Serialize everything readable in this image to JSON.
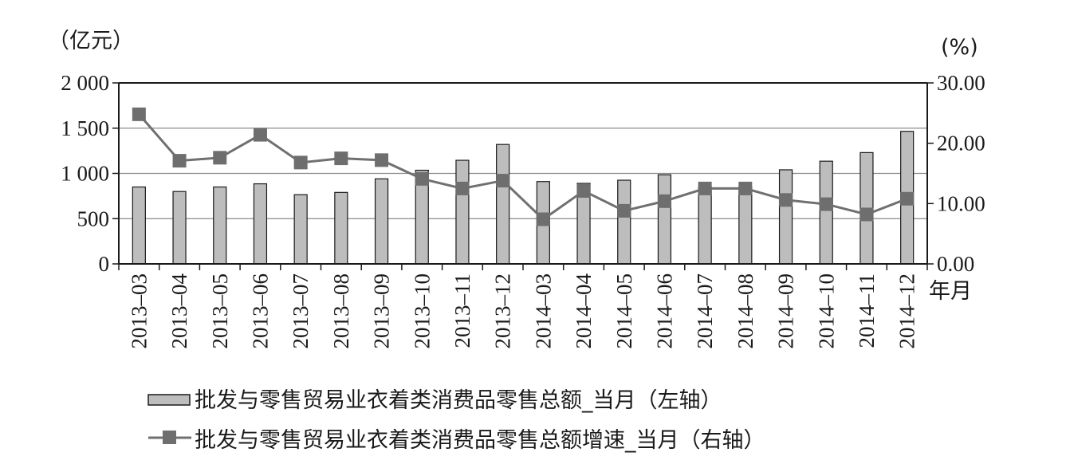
{
  "chart_data": {
    "type": "bar",
    "categories": [
      "2013–03",
      "2013–04",
      "2013–05",
      "2013–06",
      "2013–07",
      "2013–08",
      "2013–09",
      "2013–10",
      "2013–11",
      "2013–12",
      "2014–03",
      "2014–04",
      "2014–05",
      "2014–06",
      "2014–07",
      "2014–08",
      "2014–09",
      "2014–10",
      "2014–11",
      "2014–12"
    ],
    "series": [
      {
        "name": "批发与零售贸易业衣着类消费品零售总额_当月（左轴）",
        "type": "bar",
        "axis": "left",
        "color": "#bdbdbd",
        "values": [
          850,
          800,
          850,
          885,
          765,
          790,
          940,
          1035,
          1145,
          1320,
          910,
          890,
          925,
          985,
          850,
          850,
          1040,
          1135,
          1230,
          1465
        ]
      },
      {
        "name": "批发与零售贸易业衣着类消费品零售总额增速_当月（右轴）",
        "type": "line",
        "axis": "right",
        "color": "#707070",
        "values": [
          24.8,
          17.1,
          17.6,
          21.4,
          16.8,
          17.5,
          17.2,
          14.1,
          12.5,
          13.8,
          7.4,
          12.1,
          8.8,
          10.4,
          12.5,
          12.5,
          10.6,
          9.9,
          8.2,
          10.8
        ]
      }
    ],
    "left_axis": {
      "unit_label": "（亿元）",
      "ylim": [
        0,
        2000
      ],
      "ticks": [
        "0",
        "500",
        "1 000",
        "1 500",
        "2 000"
      ]
    },
    "right_axis": {
      "unit_label": "(%)",
      "ylim": [
        0,
        30
      ],
      "ticks": [
        "0.00",
        "10.00",
        "20.00",
        "30.00"
      ]
    },
    "xlabel": "年月",
    "grid": true,
    "legend_position": "bottom"
  }
}
